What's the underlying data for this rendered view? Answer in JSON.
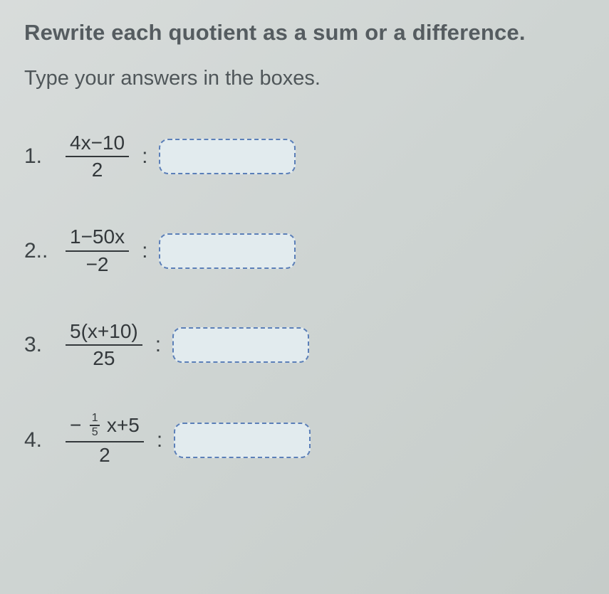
{
  "heading": "Rewrite each quotient as a sum or a difference.",
  "sub": "Type your answers in the boxes.",
  "problems": [
    {
      "num": "1.",
      "top": "4x−10",
      "bot": "2"
    },
    {
      "num": "2..",
      "top": "1−50x",
      "bot": "−2"
    },
    {
      "num": "3.",
      "top": "5(x+10)",
      "bot": "25"
    },
    {
      "num": "4.",
      "top_prefix": "−",
      "mini_top": "1",
      "mini_bot": "5",
      "top_suffix": "x+5",
      "bot": "2"
    }
  ],
  "colors": {
    "box_border": "#5b7fb8",
    "box_fill": "#e2ebee",
    "text": "#4a4f52",
    "math": "#33383b",
    "bg_a": "#d8dcdb",
    "bg_b": "#c6ccc9"
  }
}
